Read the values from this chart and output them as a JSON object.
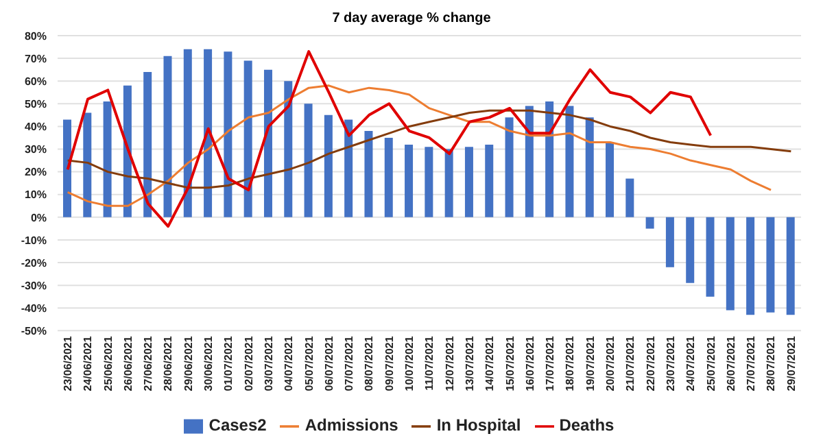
{
  "chart_data": {
    "type": "bar",
    "title": "7 day average % change",
    "categories": [
      "23/06/2021",
      "24/06/2021",
      "25/06/2021",
      "26/06/2021",
      "27/06/2021",
      "28/06/2021",
      "29/06/2021",
      "30/06/2021",
      "01/07/2021",
      "02/07/2021",
      "03/07/2021",
      "04/07/2021",
      "05/07/2021",
      "06/07/2021",
      "07/07/2021",
      "08/07/2021",
      "09/07/2021",
      "10/07/2021",
      "11/07/2021",
      "12/07/2021",
      "13/07/2021",
      "14/07/2021",
      "15/07/2021",
      "16/07/2021",
      "17/07/2021",
      "18/07/2021",
      "19/07/2021",
      "20/07/2021",
      "21/07/2021",
      "22/07/2021",
      "23/07/2021",
      "24/07/2021",
      "25/07/2021",
      "26/07/2021",
      "27/07/2021",
      "28/07/2021",
      "29/07/2021"
    ],
    "series": [
      {
        "name": "Cases2",
        "color": "#4472c4",
        "values": [
          43,
          46,
          51,
          58,
          64,
          71,
          74,
          74,
          73,
          69,
          65,
          60,
          50,
          45,
          43,
          38,
          35,
          32,
          31,
          30,
          31,
          32,
          44,
          49,
          51,
          49,
          44,
          33,
          17,
          -5,
          -22,
          -29,
          -35,
          -41,
          -43,
          -42,
          -43
        ]
      },
      {
        "name": "Admissions",
        "type": "line",
        "color": "#ed7d31",
        "values": [
          11,
          7,
          5,
          5,
          10,
          16,
          24,
          30,
          38,
          44,
          46,
          52,
          57,
          58,
          55,
          57,
          56,
          54,
          48,
          45,
          42,
          42,
          38,
          36,
          36,
          37,
          33,
          33,
          31,
          30,
          28,
          25,
          23,
          21,
          16,
          12,
          null
        ]
      },
      {
        "name": "In Hospital",
        "type": "line",
        "color": "#843c0c",
        "values": [
          25,
          24,
          20,
          18,
          17,
          15,
          13,
          13,
          14,
          17,
          19,
          21,
          24,
          28,
          31,
          34,
          37,
          40,
          42,
          44,
          46,
          47,
          47,
          47,
          46,
          45,
          43,
          40,
          38,
          35,
          33,
          32,
          31,
          31,
          31,
          30,
          29
        ]
      },
      {
        "name": "Deaths",
        "type": "line",
        "color": "#e00000",
        "values": [
          21,
          52,
          56,
          30,
          6,
          -4,
          13,
          39,
          17,
          12,
          40,
          49,
          73,
          55,
          36,
          45,
          50,
          38,
          35,
          28,
          42,
          44,
          48,
          37,
          37,
          52,
          65,
          55,
          53,
          46,
          55,
          53,
          36,
          null,
          null,
          null,
          null
        ]
      }
    ],
    "ylim": [
      -50,
      80
    ],
    "yticks": [
      {
        "value": -50,
        "label": "-50%"
      },
      {
        "value": -40,
        "label": "-40%"
      },
      {
        "value": -30,
        "label": "-30%"
      },
      {
        "value": -20,
        "label": "-20%"
      },
      {
        "value": -10,
        "label": "-10%"
      },
      {
        "value": 0,
        "label": "0%"
      },
      {
        "value": 10,
        "label": "10%"
      },
      {
        "value": 20,
        "label": "20%"
      },
      {
        "value": 30,
        "label": "30%"
      },
      {
        "value": 40,
        "label": "40%"
      },
      {
        "value": 50,
        "label": "50%"
      },
      {
        "value": 60,
        "label": "60%"
      },
      {
        "value": 70,
        "label": "70%"
      },
      {
        "value": 80,
        "label": "80%"
      }
    ],
    "grid": "y",
    "legend": "bottom",
    "marker": "none",
    "line_style": "solid"
  }
}
